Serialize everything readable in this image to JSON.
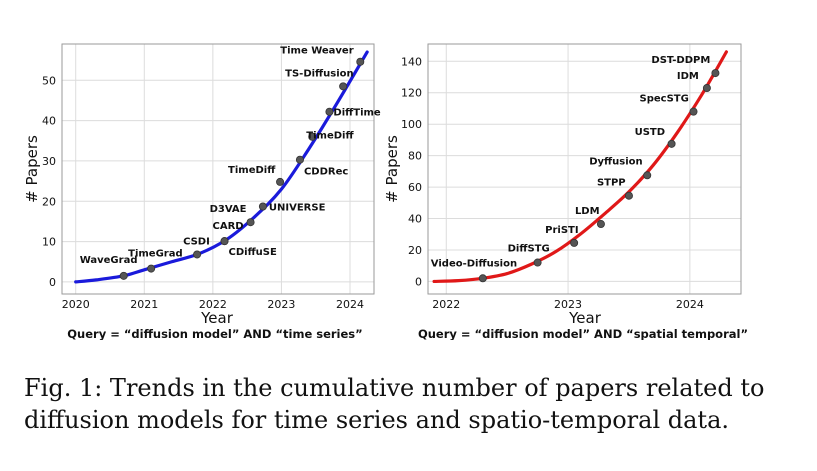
{
  "caption": "Fig. 1: Trends in the cumulative number of papers related to diffusion models for time series and spatio-temporal data.",
  "chart_data": [
    {
      "type": "line",
      "xlabel": "Year",
      "ylabel": "# Papers",
      "query": "Query = “diffusion model” AND “time series”",
      "xlim": [
        2019.8,
        2024.35
      ],
      "ylim": [
        -3,
        59
      ],
      "xticks": [
        2020,
        2021,
        2022,
        2023,
        2024
      ],
      "yticks": [
        0,
        10,
        20,
        30,
        40,
        50
      ],
      "line_color": "#1a1adb",
      "curve": [
        [
          2020.0,
          0
        ],
        [
          2020.3,
          0.5
        ],
        [
          2020.7,
          1.5
        ],
        [
          2021.0,
          3
        ],
        [
          2021.4,
          5
        ],
        [
          2021.8,
          7
        ],
        [
          2022.2,
          10.5
        ],
        [
          2022.6,
          16
        ],
        [
          2023.0,
          23
        ],
        [
          2023.4,
          33
        ],
        [
          2023.8,
          44
        ],
        [
          2024.25,
          57
        ]
      ],
      "points": [
        {
          "name": "WaveGrad",
          "x": 2020.7,
          "y": 1.5
        },
        {
          "name": "TimeGrad",
          "x": 2021.1,
          "y": 3.3
        },
        {
          "name": "CSDI",
          "x": 2021.77,
          "y": 6.8
        },
        {
          "name": "CARD",
          "x": 2022.17,
          "y": 10.1
        },
        {
          "name": "CDiffuSE",
          "x": 2022.17,
          "y": 10.1
        },
        {
          "name": "D3VAE",
          "x": 2022.55,
          "y": 14.8
        },
        {
          "name": "UNIVERSE",
          "x": 2022.73,
          "y": 18.7
        },
        {
          "name": "TimeDiff",
          "x": 2022.98,
          "y": 24.8
        },
        {
          "name": "CDDRec",
          "x": 2023.27,
          "y": 30.3
        },
        {
          "name": "TimeDiff",
          "x": 2023.45,
          "y": 36
        },
        {
          "name": "DiffTime",
          "x": 2023.7,
          "y": 42.2
        },
        {
          "name": "TS-Diffusion",
          "x": 2023.9,
          "y": 48.5
        },
        {
          "name": "Time Weaver",
          "x": 2024.15,
          "y": 54.6
        }
      ]
    },
    {
      "type": "line",
      "xlabel": "Year",
      "ylabel": "# Papers",
      "query": "Query = “diffusion model” AND “spatial temporal”",
      "xlim": [
        2021.85,
        2024.42
      ],
      "ylim": [
        -8,
        151
      ],
      "xticks": [
        2022,
        2023,
        2024
      ],
      "yticks": [
        0,
        20,
        40,
        60,
        80,
        100,
        120,
        140
      ],
      "line_color": "#e01818",
      "curve": [
        [
          2021.9,
          0
        ],
        [
          2022.1,
          0.5
        ],
        [
          2022.3,
          2
        ],
        [
          2022.5,
          5
        ],
        [
          2022.7,
          11
        ],
        [
          2022.9,
          19
        ],
        [
          2023.1,
          30
        ],
        [
          2023.3,
          43
        ],
        [
          2023.5,
          57
        ],
        [
          2023.7,
          74
        ],
        [
          2023.9,
          95
        ],
        [
          2024.1,
          119
        ],
        [
          2024.3,
          146
        ]
      ],
      "points": [
        {
          "name": "Video-Diffusion",
          "x": 2022.3,
          "y": 2
        },
        {
          "name": "DiffSTG",
          "x": 2022.75,
          "y": 12
        },
        {
          "name": "PriSTI",
          "x": 2023.05,
          "y": 24.5
        },
        {
          "name": "LDM",
          "x": 2023.27,
          "y": 36.5
        },
        {
          "name": "STPP",
          "x": 2023.5,
          "y": 54.5
        },
        {
          "name": "Dyffusion",
          "x": 2023.65,
          "y": 67.5
        },
        {
          "name": "USTD",
          "x": 2023.85,
          "y": 87.5
        },
        {
          "name": "SpecSTG",
          "x": 2024.03,
          "y": 108
        },
        {
          "name": "IDM",
          "x": 2024.14,
          "y": 123
        },
        {
          "name": "DST-DDPM",
          "x": 2024.21,
          "y": 132.5
        }
      ]
    }
  ]
}
